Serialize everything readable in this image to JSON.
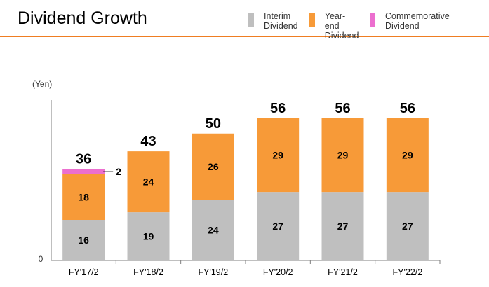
{
  "header": {
    "title": "Dividend Growth"
  },
  "chart_data": {
    "type": "bar",
    "stacked": true,
    "ylabel": "(Yen)",
    "y_tick_labels": [
      "0"
    ],
    "ylim": [
      0,
      64
    ],
    "categories": [
      "FY'17/2",
      "FY'18/2",
      "FY'19/2",
      "FY'20/2",
      "FY'21/2",
      "FY'22/2"
    ],
    "series": [
      {
        "name": "Interim\nDividend",
        "color": "#bfbfbf",
        "values": [
          16,
          19,
          24,
          27,
          27,
          27
        ]
      },
      {
        "name": "Year-end\nDividend",
        "color": "#f79a38",
        "values": [
          18,
          24,
          26,
          29,
          29,
          29
        ]
      },
      {
        "name": "Commemorative\nDividend",
        "color": "#ec6fcf",
        "values": [
          2,
          null,
          null,
          null,
          null,
          null
        ]
      }
    ],
    "totals": [
      36,
      43,
      50,
      56,
      56,
      56
    ],
    "legend_position": "top-right",
    "grid": false
  }
}
